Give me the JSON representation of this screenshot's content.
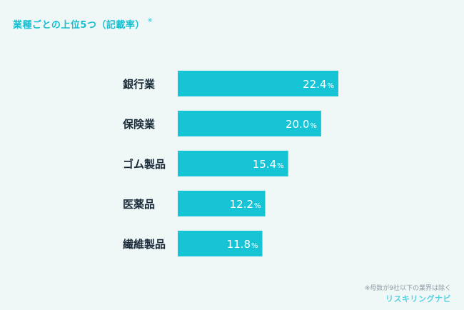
{
  "title": "業種ごとの上位5つ（記載率）",
  "title_mark": "※",
  "footnote": "※母数が9社以下の業界は除く",
  "brand": "リスキリングナビ",
  "colors": {
    "bar": "#16c4d6",
    "label": "#1a2b3a",
    "accent": "#16bfd0"
  },
  "chart_data": {
    "type": "bar",
    "orientation": "horizontal",
    "categories": [
      "銀行業",
      "保険業",
      "ゴム製品",
      "医薬品",
      "繊維製品"
    ],
    "values": [
      22.4,
      20.0,
      15.4,
      12.2,
      11.8
    ],
    "value_labels": [
      "22.4",
      "20.0",
      "15.4",
      "12.2",
      "11.8"
    ],
    "unit": "%",
    "xlim": [
      0,
      25
    ],
    "grid": false,
    "legend": "none"
  }
}
